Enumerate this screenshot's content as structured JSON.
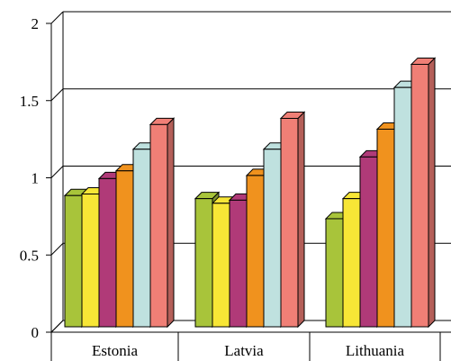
{
  "chart_data": {
    "type": "bar",
    "style": "3d-clustered-column",
    "categories": [
      "Estonia",
      "Latvia",
      "Lithuania"
    ],
    "series": [
      {
        "color": "#a8c43a",
        "values": [
          0.85,
          0.83,
          0.7
        ]
      },
      {
        "color": "#f7e636",
        "values": [
          0.86,
          0.8,
          0.83
        ]
      },
      {
        "color": "#b03a78",
        "values": [
          0.96,
          0.82,
          1.1
        ]
      },
      {
        "color": "#f0921e",
        "values": [
          1.01,
          0.98,
          1.28
        ]
      },
      {
        "color": "#bfe1df",
        "values": [
          1.15,
          1.15,
          1.55
        ]
      },
      {
        "color": "#f07f76",
        "values": [
          1.31,
          1.35,
          1.7
        ]
      }
    ],
    "ylim": [
      0,
      2
    ],
    "yticks": [
      0,
      0.5,
      1,
      1.5,
      2
    ],
    "ytick_labels": [
      "0",
      "0.5",
      "1",
      "1.5",
      "2"
    ],
    "grid": true,
    "legend": "none",
    "title": "",
    "xlabel": "",
    "ylabel": ""
  }
}
